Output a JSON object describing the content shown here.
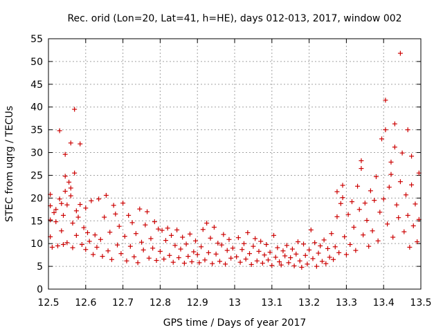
{
  "chart_data": {
    "type": "scatter",
    "title": "Rec. orid (Lon=20, Lat=41, h=HE), days 012-013, 2017, window 002",
    "xlabel": "GPS time / Days of year 2017",
    "ylabel": "STEC from uqrg / TECUs",
    "xlim": [
      12.5,
      13.5
    ],
    "ylim": [
      0,
      55
    ],
    "xticks": [
      "12.5",
      "12.6",
      "12.7",
      "12.8",
      "12.9",
      "13",
      "13.1",
      "13.2",
      "13.3",
      "13.4",
      "13.5"
    ],
    "yticks": [
      "0",
      "5",
      "10",
      "15",
      "20",
      "25",
      "30",
      "35",
      "40",
      "45",
      "50",
      "55"
    ],
    "grid": true,
    "legend": "none",
    "marker": "plus",
    "color": "#cc0000",
    "series": [
      {
        "points": [
          [
            12.505,
            20.8
          ],
          [
            12.505,
            18.3
          ],
          [
            12.505,
            15.2
          ],
          [
            12.505,
            11.5
          ],
          [
            12.51,
            9.2
          ],
          [
            12.515,
            16.8
          ],
          [
            12.52,
            17.5
          ],
          [
            12.52,
            14.8
          ],
          [
            12.525,
            9.5
          ],
          [
            12.53,
            34.8
          ],
          [
            12.53,
            19.8
          ],
          [
            12.535,
            18.8
          ],
          [
            12.535,
            12.8
          ],
          [
            12.54,
            16.2
          ],
          [
            12.54,
            9.8
          ],
          [
            12.545,
            29.6
          ],
          [
            12.545,
            24.8
          ],
          [
            12.545,
            21.5
          ],
          [
            12.55,
            18.5
          ],
          [
            12.55,
            10.2
          ],
          [
            12.555,
            23.5
          ],
          [
            12.56,
            32.1
          ],
          [
            12.56,
            22.2
          ],
          [
            12.56,
            20.5
          ],
          [
            12.565,
            14.5
          ],
          [
            12.565,
            9.1
          ],
          [
            12.57,
            39.5
          ],
          [
            12.57,
            25.5
          ],
          [
            12.575,
            17.2
          ],
          [
            12.575,
            11.8
          ],
          [
            12.58,
            15.8
          ],
          [
            12.585,
            31.9
          ],
          [
            12.585,
            18.6
          ],
          [
            12.59,
            9.8
          ],
          [
            12.595,
            13.5
          ],
          [
            12.6,
            17.8
          ],
          [
            12.6,
            8.7
          ],
          [
            12.605,
            12.4
          ],
          [
            12.61,
            10.5
          ],
          [
            12.615,
            19.4
          ],
          [
            12.62,
            7.6
          ],
          [
            12.625,
            11.9
          ],
          [
            12.63,
            9.2
          ],
          [
            12.635,
            19.8
          ],
          [
            12.64,
            10.9
          ],
          [
            12.645,
            7.2
          ],
          [
            12.65,
            15.8
          ],
          [
            12.655,
            20.6
          ],
          [
            12.66,
            8.4
          ],
          [
            12.665,
            12.5
          ],
          [
            12.67,
            6.5
          ],
          [
            12.675,
            18.4
          ],
          [
            12.68,
            16.5
          ],
          [
            12.685,
            9.7
          ],
          [
            12.69,
            13.8
          ],
          [
            12.695,
            7.8
          ],
          [
            12.7,
            18.9
          ],
          [
            12.705,
            11.6
          ],
          [
            12.71,
            6.2
          ],
          [
            12.715,
            16.2
          ],
          [
            12.72,
            9.4
          ],
          [
            12.725,
            14.6
          ],
          [
            12.73,
            7.1
          ],
          [
            12.735,
            12.2
          ],
          [
            12.74,
            5.8
          ],
          [
            12.745,
            17.6
          ],
          [
            12.75,
            10.3
          ],
          [
            12.755,
            8.6
          ],
          [
            12.76,
            14.1
          ],
          [
            12.765,
            17.0
          ],
          [
            12.77,
            6.8
          ],
          [
            12.775,
            11.1
          ],
          [
            12.78,
            9.0
          ],
          [
            12.785,
            14.8
          ],
          [
            12.79,
            6.3
          ],
          [
            12.795,
            13.2
          ],
          [
            12.8,
            8.3
          ],
          [
            12.805,
            12.9
          ],
          [
            12.81,
            6.6
          ],
          [
            12.815,
            10.7
          ],
          [
            12.82,
            13.4
          ],
          [
            12.825,
            7.4
          ],
          [
            12.83,
            11.8
          ],
          [
            12.835,
            5.9
          ],
          [
            12.84,
            9.6
          ],
          [
            12.845,
            13.0
          ],
          [
            12.85,
            6.9
          ],
          [
            12.855,
            8.8
          ],
          [
            12.86,
            11.4
          ],
          [
            12.865,
            5.7
          ],
          [
            12.87,
            9.9
          ],
          [
            12.875,
            7.2
          ],
          [
            12.88,
            12.1
          ],
          [
            12.885,
            6.0
          ],
          [
            12.89,
            8.2
          ],
          [
            12.895,
            10.6
          ],
          [
            12.9,
            7.6
          ],
          [
            12.905,
            5.8
          ],
          [
            12.91,
            9.3
          ],
          [
            12.915,
            13.1
          ],
          [
            12.92,
            6.4
          ],
          [
            12.925,
            14.5
          ],
          [
            12.93,
            8.0
          ],
          [
            12.935,
            11.2
          ],
          [
            12.94,
            5.6
          ],
          [
            12.945,
            13.6
          ],
          [
            12.95,
            7.7
          ],
          [
            12.955,
            10.1
          ],
          [
            12.96,
            6.1
          ],
          [
            12.965,
            9.7
          ],
          [
            12.97,
            12.0
          ],
          [
            12.975,
            5.5
          ],
          [
            12.98,
            8.5
          ],
          [
            12.985,
            10.9
          ],
          [
            12.99,
            6.8
          ],
          [
            12.995,
            9.0
          ],
          [
            13.005,
            7.1
          ],
          [
            13.01,
            11.3
          ],
          [
            13.015,
            5.9
          ],
          [
            13.02,
            8.7
          ],
          [
            13.025,
            10.0
          ],
          [
            13.03,
            6.6
          ],
          [
            13.035,
            12.4
          ],
          [
            13.04,
            7.8
          ],
          [
            13.045,
            5.4
          ],
          [
            13.05,
            9.4
          ],
          [
            13.055,
            11.1
          ],
          [
            13.06,
            6.2
          ],
          [
            13.065,
            8.3
          ],
          [
            13.07,
            10.5
          ],
          [
            13.075,
            5.7
          ],
          [
            13.08,
            7.5
          ],
          [
            13.085,
            9.8
          ],
          [
            13.09,
            6.4
          ],
          [
            13.095,
            8.1
          ],
          [
            13.1,
            5.2
          ],
          [
            13.105,
            11.8
          ],
          [
            13.11,
            7.0
          ],
          [
            13.115,
            9.1
          ],
          [
            13.12,
            6.0
          ],
          [
            13.125,
            5.3
          ],
          [
            13.13,
            8.4
          ],
          [
            13.135,
            7.3
          ],
          [
            13.14,
            9.6
          ],
          [
            13.145,
            5.8
          ],
          [
            13.15,
            6.9
          ],
          [
            13.155,
            8.8
          ],
          [
            13.16,
            5.1
          ],
          [
            13.165,
            7.7
          ],
          [
            13.17,
            10.4
          ],
          [
            13.175,
            6.2
          ],
          [
            13.18,
            4.8
          ],
          [
            13.185,
            9.9
          ],
          [
            13.19,
            7.4
          ],
          [
            13.195,
            5.5
          ],
          [
            13.2,
            8.6
          ],
          [
            13.205,
            13.0
          ],
          [
            13.21,
            6.7
          ],
          [
            13.215,
            10.2
          ],
          [
            13.22,
            5.0
          ],
          [
            13.225,
            7.9
          ],
          [
            13.23,
            9.5
          ],
          [
            13.235,
            6.1
          ],
          [
            13.24,
            10.8
          ],
          [
            13.245,
            5.6
          ],
          [
            13.25,
            8.9
          ],
          [
            13.255,
            7.0
          ],
          [
            13.26,
            12.2
          ],
          [
            13.265,
            6.5
          ],
          [
            13.27,
            9.3
          ],
          [
            13.275,
            21.4
          ],
          [
            13.275,
            15.9
          ],
          [
            13.28,
            8.0
          ],
          [
            13.285,
            18.8
          ],
          [
            13.29,
            22.8
          ],
          [
            13.29,
            20.1
          ],
          [
            13.295,
            11.5
          ],
          [
            13.3,
            7.6
          ],
          [
            13.305,
            16.4
          ],
          [
            13.31,
            9.8
          ],
          [
            13.315,
            19.2
          ],
          [
            13.32,
            13.6
          ],
          [
            13.325,
            8.5
          ],
          [
            13.33,
            22.6
          ],
          [
            13.335,
            17.5
          ],
          [
            13.34,
            28.2
          ],
          [
            13.34,
            26.5
          ],
          [
            13.345,
            11.9
          ],
          [
            13.35,
            18.9
          ],
          [
            13.355,
            15.1
          ],
          [
            13.36,
            9.4
          ],
          [
            13.365,
            21.6
          ],
          [
            13.37,
            12.8
          ],
          [
            13.375,
            19.5
          ],
          [
            13.38,
            24.7
          ],
          [
            13.385,
            10.6
          ],
          [
            13.39,
            16.9
          ],
          [
            13.395,
            33.0
          ],
          [
            13.4,
            19.8
          ],
          [
            13.405,
            41.5
          ],
          [
            13.405,
            35.0
          ],
          [
            13.41,
            14.3
          ],
          [
            13.415,
            22.4
          ],
          [
            13.42,
            27.9
          ],
          [
            13.42,
            25.2
          ],
          [
            13.425,
            11.4
          ],
          [
            13.43,
            31.2
          ],
          [
            13.43,
            36.3
          ],
          [
            13.435,
            18.5
          ],
          [
            13.44,
            15.7
          ],
          [
            13.445,
            51.8
          ],
          [
            13.445,
            23.6
          ],
          [
            13.45,
            29.9
          ],
          [
            13.455,
            12.6
          ],
          [
            13.46,
            20.7
          ],
          [
            13.465,
            35.0
          ],
          [
            13.465,
            16.2
          ],
          [
            13.47,
            9.2
          ],
          [
            13.475,
            29.2
          ],
          [
            13.475,
            22.9
          ],
          [
            13.48,
            13.9
          ],
          [
            13.485,
            18.7
          ],
          [
            13.49,
            10.4
          ],
          [
            13.495,
            25.5
          ],
          [
            13.495,
            15.3
          ]
        ]
      }
    ]
  }
}
